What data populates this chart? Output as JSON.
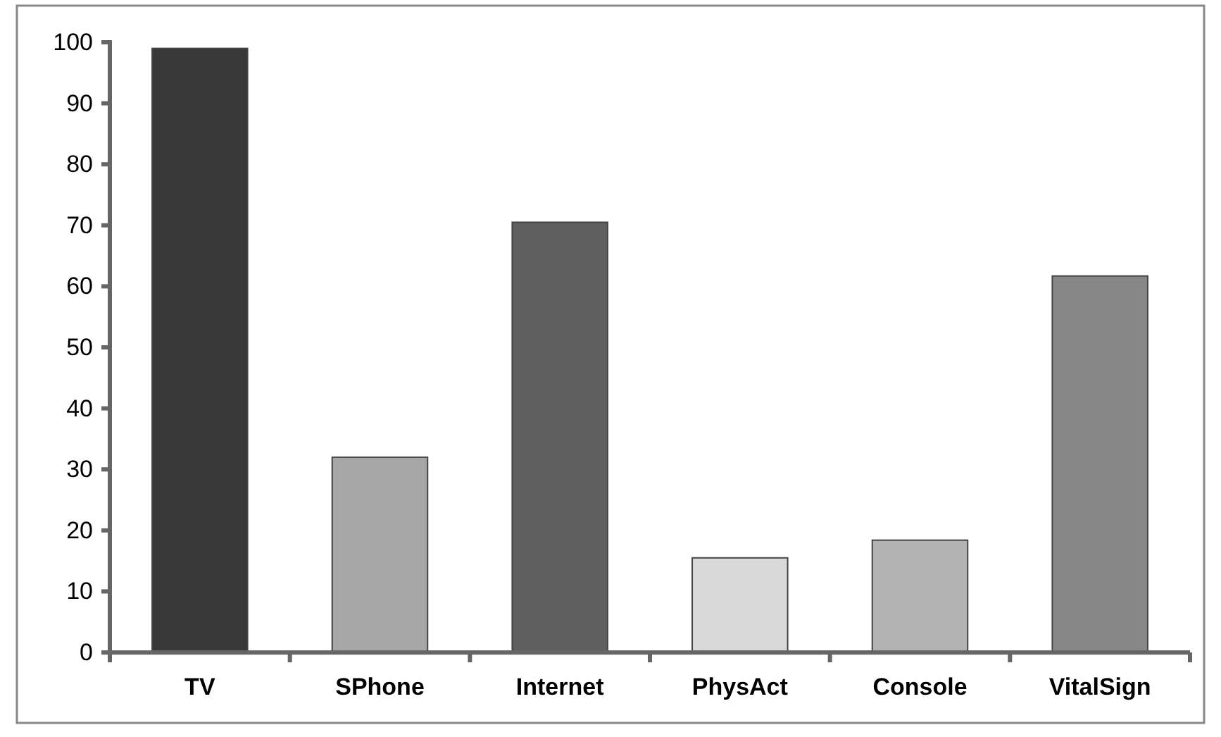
{
  "chart_data": {
    "type": "bar",
    "categories": [
      "TV",
      "SPhone",
      "Internet",
      "PhysAct",
      "Console",
      "VitalSign"
    ],
    "values": [
      99,
      32,
      70.5,
      15.5,
      18.4,
      61.7
    ],
    "colors": [
      "#383838",
      "#a6a6a6",
      "#5f5f5f",
      "#d9d9d9",
      "#b3b3b3",
      "#878787"
    ],
    "ylim": [
      0,
      100
    ],
    "yticks": [
      0,
      10,
      20,
      30,
      40,
      50,
      60,
      70,
      80,
      90,
      100
    ],
    "grid": false
  }
}
